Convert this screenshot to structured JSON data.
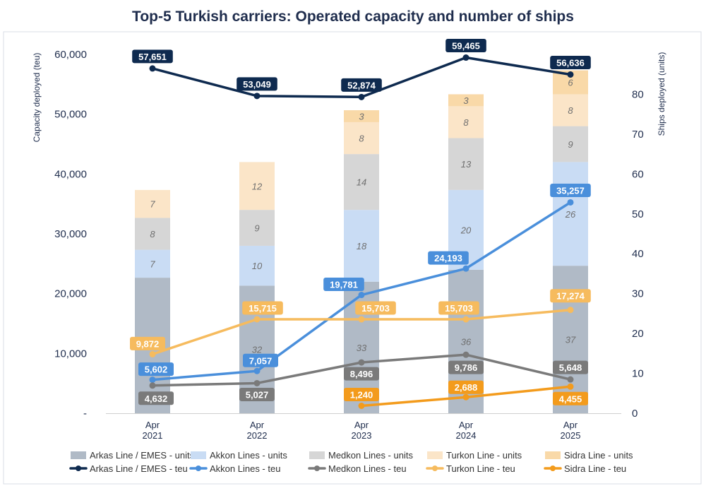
{
  "chart_data": {
    "type": "bar",
    "title": "Top-5 Turkish carriers: Operated capacity and number of ships",
    "categories": [
      [
        "Apr",
        "2021"
      ],
      [
        "Apr",
        "2022"
      ],
      [
        "Apr",
        "2023"
      ],
      [
        "Apr",
        "2024"
      ],
      [
        "Apr",
        "2025"
      ]
    ],
    "y_left": {
      "label": "Capacity deployed (teu)",
      "ylim": [
        0,
        60000
      ],
      "ticks": [
        0,
        10000,
        20000,
        30000,
        40000,
        50000,
        60000
      ],
      "tick_labels": [
        "-",
        "10,000",
        "20,000",
        "30,000",
        "40,000",
        "50,000",
        "60,000"
      ]
    },
    "y_right": {
      "label": "Ships deployed (units)",
      "ylim": [
        0,
        90
      ],
      "ticks": [
        0,
        10,
        20,
        30,
        40,
        50,
        60,
        70,
        80
      ],
      "tick_labels": [
        "0",
        "10",
        "20",
        "30",
        "40",
        "50",
        "60",
        "70",
        "80"
      ]
    },
    "bar_series": [
      {
        "name": "Arkas Line / EMES - units",
        "color": "#b0bac6",
        "values": [
          34,
          32,
          33,
          36,
          37
        ]
      },
      {
        "name": "Akkon Lines - units",
        "color": "#c9dcf4",
        "values": [
          7,
          10,
          18,
          20,
          26
        ]
      },
      {
        "name": "Medkon Lines - units",
        "color": "#d6d6d6",
        "values": [
          8,
          9,
          14,
          13,
          9
        ]
      },
      {
        "name": "Turkon Line - units",
        "color": "#fbe5c8",
        "values": [
          7,
          12,
          8,
          8,
          8
        ]
      },
      {
        "name": "Sidra Line - units",
        "color": "#f9d9a8",
        "values": [
          null,
          null,
          3,
          3,
          6
        ]
      }
    ],
    "line_series": [
      {
        "name": "Arkas Line / EMES - teu",
        "color": "#0e2a4f",
        "values": [
          57651,
          53049,
          52874,
          59465,
          56636
        ],
        "labels": [
          "57,651",
          "53,049",
          "52,874",
          "59,465",
          "56,636"
        ]
      },
      {
        "name": "Akkon Lines - teu",
        "color": "#4a8fdb",
        "values": [
          5602,
          7057,
          19781,
          24193,
          35257
        ],
        "labels": [
          "5,602",
          "7,057",
          "19,781",
          "24,193",
          "35,257"
        ]
      },
      {
        "name": "Medkon Lines - teu",
        "color": "#7a7a7a",
        "values": [
          4632,
          5027,
          8496,
          9786,
          5648
        ],
        "labels": [
          "4,632",
          "5,027",
          "8,496",
          "9,786",
          "5,648"
        ]
      },
      {
        "name": "Turkon Line - teu",
        "color": "#f6bb5e",
        "values": [
          9872,
          15715,
          15703,
          15703,
          17274
        ],
        "labels": [
          "9,872",
          "15,715",
          "15,703",
          "15,703",
          "17,274"
        ]
      },
      {
        "name": "Sidra Line - teu",
        "color": "#f39b1c",
        "values": [
          null,
          null,
          1240,
          2688,
          4455
        ],
        "labels": [
          "",
          "",
          "1,240",
          "2,688",
          "4,455"
        ]
      }
    ],
    "legend": {
      "position": "bottom"
    },
    "grid": false
  }
}
